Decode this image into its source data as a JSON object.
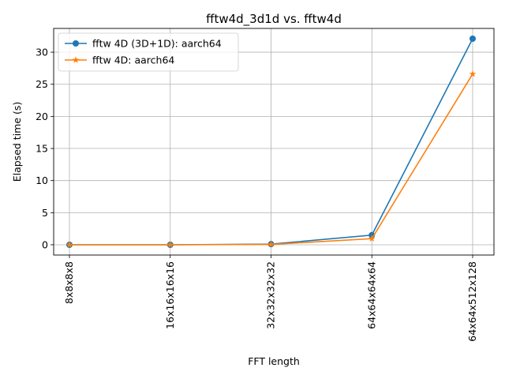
{
  "chart_data": {
    "type": "line",
    "title": "fftw4d_3d1d vs. fftw4d",
    "xlabel": "FFT length",
    "ylabel": "Elapsed time (s)",
    "categories": [
      "8x8x8x8",
      "16x16x16x16",
      "32x32x32x32",
      "64x64x64x64",
      "64x64x512x128"
    ],
    "ylim": [
      -1.6,
      33.7
    ],
    "yticks": [
      0,
      5,
      10,
      15,
      20,
      25,
      30
    ],
    "grid": true,
    "legend_position": "top-left",
    "series": [
      {
        "name": "fftw 4D (3D+1D): aarch64",
        "color": "#1f77b4",
        "marker": "circle",
        "values": [
          0.0,
          0.0,
          0.1,
          1.5,
          32.1
        ]
      },
      {
        "name": "fftw 4D: aarch64",
        "color": "#ff7f0e",
        "marker": "star",
        "values": [
          0.0,
          0.0,
          0.05,
          0.95,
          26.6
        ]
      }
    ]
  }
}
